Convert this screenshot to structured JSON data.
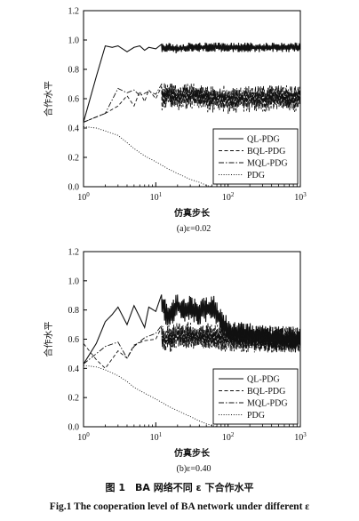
{
  "caption": {
    "cn": "图 1　BA 网络不同 ε 下合作水平",
    "en": "Fig.1   The cooperation level of BA network under different ε"
  },
  "colors": {
    "line": "#111111",
    "frame": "#000000",
    "background": "#ffffff"
  },
  "chart_data": [
    {
      "type": "line",
      "subtitle": "(a)ε=0.02",
      "xlabel": "仿真步长",
      "ylabel": "合作水平",
      "xscale": "log",
      "xlim": [
        1,
        1000
      ],
      "ylim": [
        0.0,
        1.2
      ],
      "xticks": [
        "10^0",
        "10^1",
        "10^2",
        "10^3"
      ],
      "yticks": [
        "0.0",
        "0.2",
        "0.4",
        "0.6",
        "0.8",
        "1.0",
        "1.2"
      ],
      "legend_position": "bottom-right",
      "series": [
        {
          "name": "QL-PDG",
          "dash": "solid",
          "x": [
            1,
            1.5,
            2,
            2.5,
            3,
            4,
            5,
            6,
            7,
            8,
            10,
            15,
            20,
            30,
            50,
            100,
            200,
            500,
            1000
          ],
          "y": [
            0.44,
            0.75,
            0.96,
            0.95,
            0.96,
            0.92,
            0.95,
            0.96,
            0.93,
            0.95,
            0.94,
            0.95,
            0.94,
            0.95,
            0.95,
            0.95,
            0.95,
            0.95,
            0.95
          ],
          "noise": 0.025
        },
        {
          "name": "BQL-PDG",
          "dash": "dashed",
          "x": [
            1,
            2,
            3,
            4,
            5,
            6,
            7,
            8,
            10,
            15,
            20,
            30,
            50,
            100,
            200,
            500,
            1000
          ],
          "y": [
            0.44,
            0.5,
            0.55,
            0.62,
            0.55,
            0.65,
            0.58,
            0.66,
            0.6,
            0.62,
            0.6,
            0.62,
            0.6,
            0.58,
            0.6,
            0.6,
            0.6
          ],
          "noise": 0.07
        },
        {
          "name": "MQL-PDG",
          "dash": "dashdot",
          "x": [
            1,
            2,
            3,
            4,
            5,
            6,
            8,
            10,
            15,
            20,
            30,
            50,
            100,
            200,
            500,
            1000
          ],
          "y": [
            0.44,
            0.5,
            0.67,
            0.64,
            0.66,
            0.62,
            0.65,
            0.63,
            0.64,
            0.62,
            0.63,
            0.61,
            0.61,
            0.6,
            0.61,
            0.6
          ],
          "noise": 0.06
        },
        {
          "name": "PDG",
          "dash": "dotted",
          "x": [
            1,
            1.5,
            2,
            3,
            4,
            5,
            7,
            10,
            15,
            20,
            30,
            40,
            50,
            60
          ],
          "y": [
            0.41,
            0.4,
            0.38,
            0.35,
            0.3,
            0.26,
            0.21,
            0.17,
            0.12,
            0.09,
            0.05,
            0.03,
            0.01,
            0.0
          ],
          "noise": 0.0
        }
      ]
    },
    {
      "type": "line",
      "subtitle": "(b)ε=0.40",
      "xlabel": "仿真步长",
      "ylabel": "合作水平",
      "xscale": "log",
      "xlim": [
        1,
        1000
      ],
      "ylim": [
        0.0,
        1.2
      ],
      "xticks": [
        "10^0",
        "10^1",
        "10^2",
        "10^3"
      ],
      "yticks": [
        "0.0",
        "0.2",
        "0.4",
        "0.6",
        "0.8",
        "1.0",
        "1.2"
      ],
      "legend_position": "bottom-right",
      "series": [
        {
          "name": "QL-PDG",
          "dash": "solid",
          "x": [
            1,
            1.5,
            2,
            2.5,
            3,
            4,
            5,
            6,
            7,
            8,
            10,
            12,
            15,
            20,
            25,
            30,
            40,
            50,
            60,
            70,
            100,
            200,
            500,
            1000
          ],
          "y": [
            0.43,
            0.57,
            0.72,
            0.77,
            0.82,
            0.7,
            0.83,
            0.75,
            0.68,
            0.82,
            0.79,
            0.83,
            0.76,
            0.83,
            0.8,
            0.82,
            0.78,
            0.8,
            0.82,
            0.78,
            0.65,
            0.62,
            0.6,
            0.6
          ],
          "noise": 0.07
        },
        {
          "name": "BQL-PDG",
          "dash": "dashed",
          "x": [
            1,
            1.5,
            2,
            3,
            4,
            5,
            7,
            10,
            20,
            50,
            100,
            200,
            500,
            1000
          ],
          "y": [
            0.57,
            0.46,
            0.4,
            0.52,
            0.47,
            0.56,
            0.59,
            0.6,
            0.62,
            0.63,
            0.6,
            0.6,
            0.6,
            0.6
          ],
          "noise": 0.07
        },
        {
          "name": "MQL-PDG",
          "dash": "dashdot",
          "x": [
            1,
            2,
            3,
            4,
            5,
            7,
            10,
            15,
            20,
            30,
            50,
            100,
            200,
            500,
            1000
          ],
          "y": [
            0.43,
            0.55,
            0.58,
            0.47,
            0.55,
            0.61,
            0.64,
            0.59,
            0.62,
            0.63,
            0.61,
            0.61,
            0.6,
            0.6,
            0.6
          ],
          "noise": 0.07
        },
        {
          "name": "PDG",
          "dash": "dotted",
          "x": [
            1,
            1.5,
            2,
            3,
            4,
            5,
            7,
            10,
            15,
            20,
            30,
            40,
            50,
            60,
            70
          ],
          "y": [
            0.42,
            0.41,
            0.39,
            0.35,
            0.31,
            0.27,
            0.23,
            0.19,
            0.14,
            0.11,
            0.07,
            0.04,
            0.02,
            0.01,
            0.0
          ],
          "noise": 0.0
        }
      ]
    }
  ]
}
